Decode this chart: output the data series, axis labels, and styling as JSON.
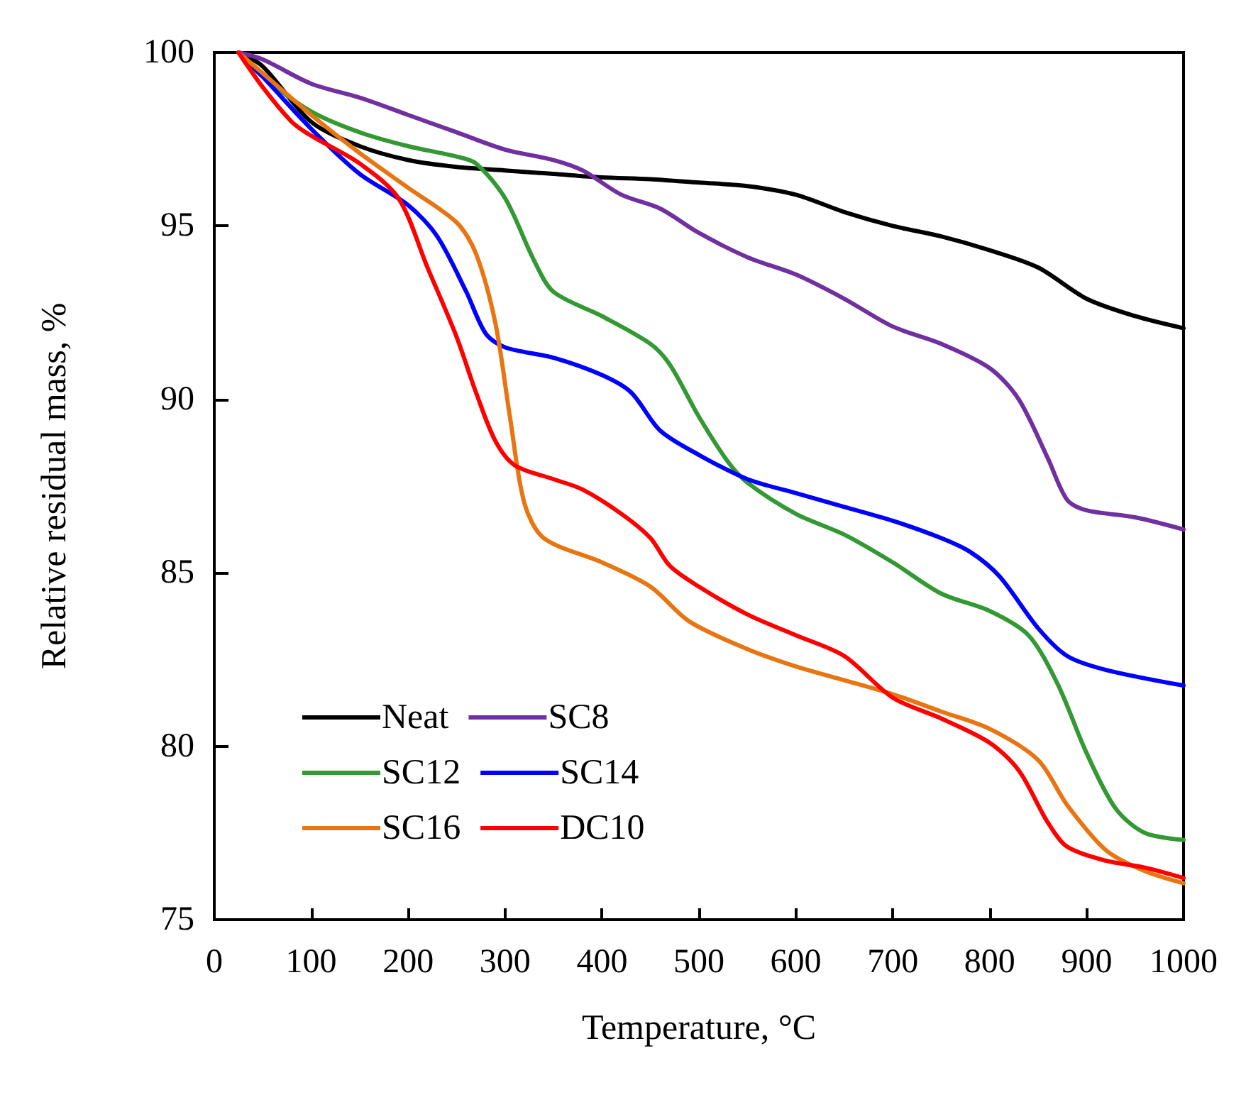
{
  "chart_data": {
    "type": "line",
    "xlabel": "Temperature, °C",
    "ylabel": "Relative residual mass, %",
    "xlim": [
      0,
      1000
    ],
    "xticks": [
      0,
      100,
      200,
      300,
      400,
      500,
      600,
      700,
      800,
      900,
      1000
    ],
    "ylim": [
      75,
      100
    ],
    "yticks": [
      75,
      80,
      85,
      90,
      95,
      100
    ],
    "legend": "bottom left",
    "grid": false,
    "marker": "none",
    "line_style": "solid",
    "series": [
      {
        "name": "Neat",
        "color": "#000000",
        "x": [
          25,
          50,
          100,
          150,
          200,
          250,
          300,
          350,
          400,
          450,
          500,
          550,
          600,
          650,
          700,
          750,
          800,
          850,
          900,
          950,
          1000
        ],
        "values": [
          100,
          99.6,
          98,
          97.3,
          96.9,
          96.7,
          96.6,
          96.5,
          96.4,
          96.35,
          96.25,
          96.15,
          95.9,
          95.4,
          95,
          94.7,
          94.3,
          93.8,
          92.9,
          92.4,
          92.05
        ]
      },
      {
        "name": "SC8",
        "color": "#7030a0",
        "x": [
          25,
          50,
          100,
          150,
          200,
          250,
          300,
          350,
          380,
          420,
          460,
          500,
          550,
          600,
          650,
          700,
          750,
          800,
          830,
          860,
          880,
          900,
          950,
          1000
        ],
        "values": [
          100,
          99.8,
          99.1,
          98.7,
          98.2,
          97.7,
          97.2,
          96.9,
          96.6,
          95.9,
          95.5,
          94.8,
          94.1,
          93.6,
          92.9,
          92.1,
          91.6,
          90.9,
          90,
          88.3,
          87.1,
          86.8,
          86.6,
          86.25
        ]
      },
      {
        "name": "SC12",
        "color": "#339933",
        "x": [
          25,
          50,
          100,
          150,
          200,
          250,
          270,
          300,
          330,
          350,
          400,
          450,
          470,
          500,
          530,
          550,
          600,
          650,
          700,
          750,
          800,
          840,
          870,
          900,
          930,
          960,
          1000
        ],
        "values": [
          100,
          99.3,
          98.3,
          97.7,
          97.3,
          97,
          96.8,
          95.8,
          94,
          93.1,
          92.4,
          91.6,
          91,
          89.5,
          88.2,
          87.6,
          86.7,
          86.1,
          85.3,
          84.4,
          83.9,
          83.2,
          81.8,
          79.8,
          78.2,
          77.5,
          77.3
        ]
      },
      {
        "name": "SC14",
        "color": "#0000ff",
        "x": [
          25,
          50,
          100,
          150,
          200,
          230,
          260,
          280,
          300,
          350,
          400,
          430,
          460,
          500,
          550,
          600,
          650,
          700,
          750,
          780,
          810,
          850,
          880,
          920,
          1000
        ],
        "values": [
          100,
          99.3,
          97.8,
          96.5,
          95.6,
          94.7,
          93.1,
          91.9,
          91.5,
          91.2,
          90.7,
          90.2,
          89.1,
          88.4,
          87.7,
          87.3,
          86.9,
          86.5,
          86,
          85.6,
          84.9,
          83.4,
          82.6,
          82.2,
          81.75
        ]
      },
      {
        "name": "SC16",
        "color": "#e87511",
        "x": [
          25,
          50,
          100,
          150,
          200,
          250,
          270,
          290,
          305,
          320,
          340,
          400,
          450,
          490,
          550,
          600,
          650,
          700,
          750,
          800,
          850,
          880,
          920,
          960,
          1000
        ],
        "values": [
          100,
          99.4,
          98.2,
          97.1,
          96.1,
          95.1,
          94.2,
          92.2,
          89.5,
          87,
          86,
          85.3,
          84.6,
          83.6,
          82.8,
          82.3,
          81.9,
          81.5,
          81,
          80.5,
          79.6,
          78.3,
          77,
          76.4,
          76.05
        ]
      },
      {
        "name": "DC10",
        "color": "#ff0000",
        "x": [
          25,
          50,
          80,
          100,
          150,
          190,
          220,
          250,
          270,
          290,
          310,
          350,
          380,
          420,
          450,
          470,
          500,
          550,
          600,
          650,
          700,
          750,
          800,
          830,
          860,
          880,
          920,
          960,
          1000
        ],
        "values": [
          100,
          99,
          98,
          97.6,
          96.8,
          95.8,
          93.8,
          91.8,
          90.2,
          88.8,
          88.1,
          87.7,
          87.4,
          86.7,
          86,
          85.2,
          84.6,
          83.8,
          83.2,
          82.6,
          81.4,
          80.8,
          80.1,
          79.3,
          77.8,
          77.1,
          76.7,
          76.5,
          76.2
        ]
      }
    ]
  }
}
